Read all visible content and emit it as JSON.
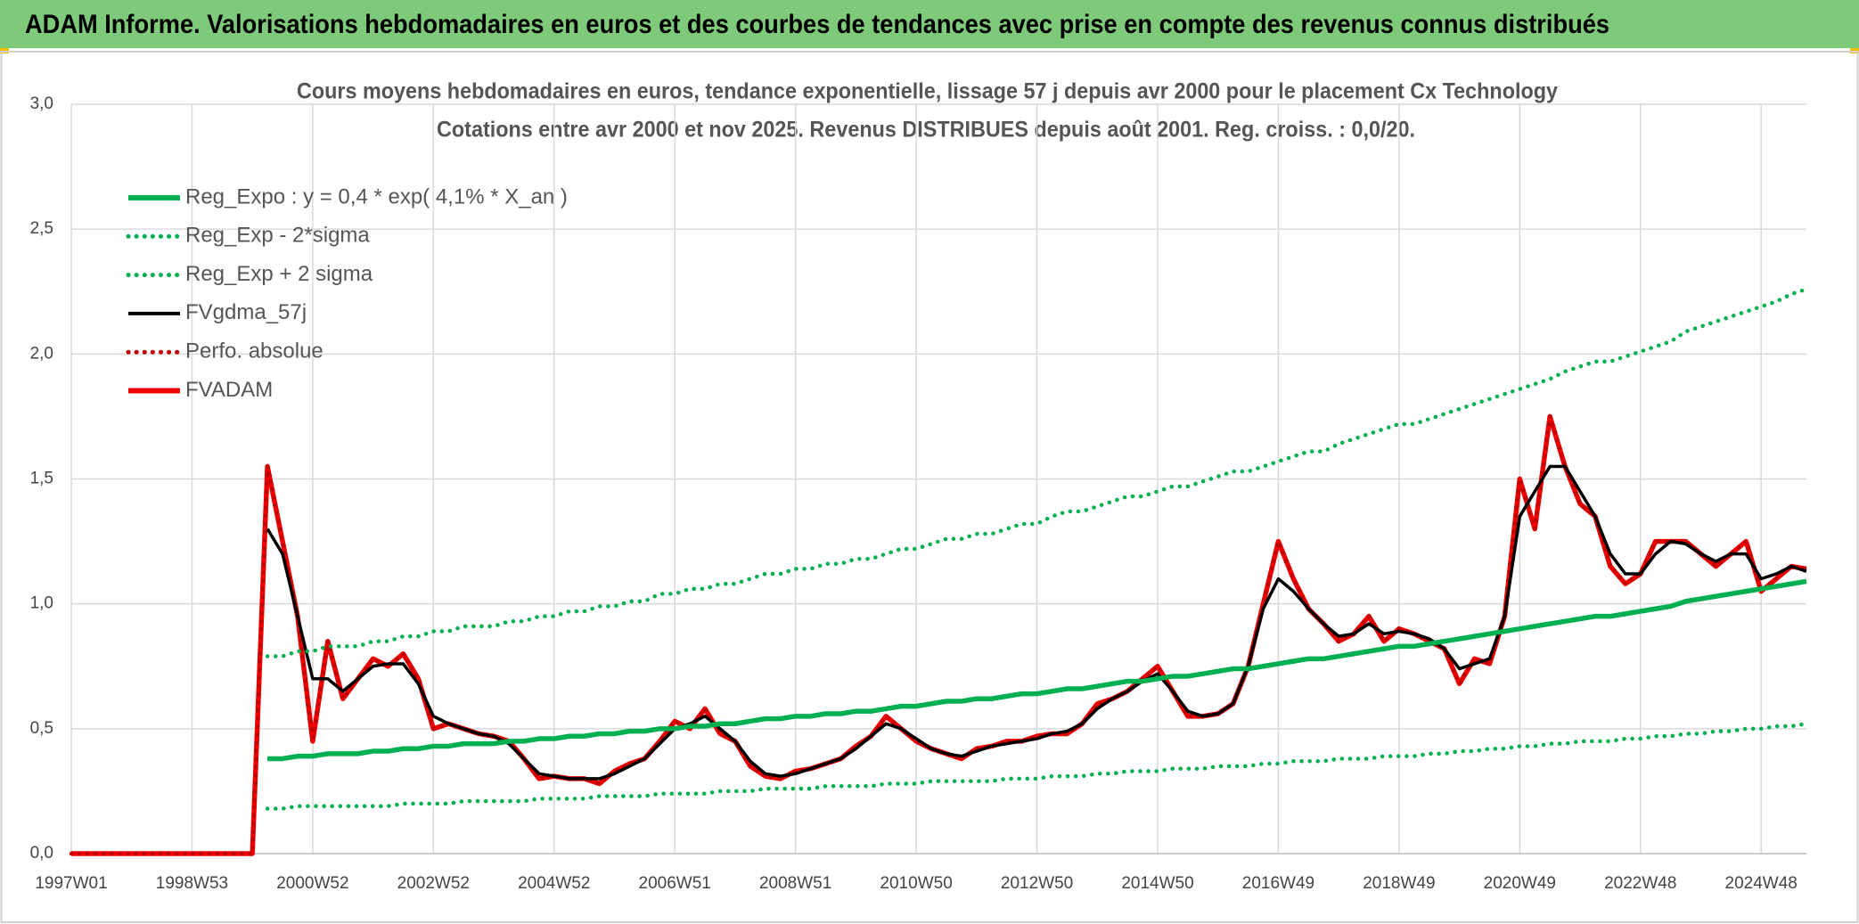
{
  "header": {
    "title": "ADAM Informe. Valorisations hebdomadaires en euros et des courbes de tendances avec prise en compte des revenus connus distribués"
  },
  "chart_data": {
    "type": "line",
    "title": "Cours moyens hebdomadaires en euros, tendance exponentielle, lissage 57 j depuis avr 2000 pour le placement Cx Technology",
    "subtitle": "Cotations entre avr 2000 et nov 2025. Revenus DISTRIBUES depuis août 2001. Reg. croiss. : 0,0/20.",
    "categories": [
      "1997W01",
      null,
      null,
      null,
      null,
      null,
      null,
      null,
      "1998W53",
      null,
      null,
      null,
      null,
      null,
      null,
      null,
      "2000W52",
      null,
      null,
      null,
      null,
      null,
      null,
      null,
      "2002W52",
      null,
      null,
      null,
      null,
      null,
      null,
      null,
      "2004W52",
      null,
      null,
      null,
      null,
      null,
      null,
      null,
      "2006W51",
      null,
      null,
      null,
      null,
      null,
      null,
      null,
      "2008W51",
      null,
      null,
      null,
      null,
      null,
      null,
      null,
      "2010W50",
      null,
      null,
      null,
      null,
      null,
      null,
      null,
      "2012W50",
      null,
      null,
      null,
      null,
      null,
      null,
      null,
      "2014W50",
      null,
      null,
      null,
      null,
      null,
      null,
      null,
      "2016W49",
      null,
      null,
      null,
      null,
      null,
      null,
      null,
      "2018W49",
      null,
      null,
      null,
      null,
      null,
      null,
      null,
      "2020W49",
      null,
      null,
      null,
      null,
      null,
      null,
      null,
      "2022W48",
      null,
      null,
      null,
      null,
      null,
      null,
      null,
      "2024W48",
      null,
      null,
      null
    ],
    "ylim": [
      0,
      3
    ],
    "yticks": [
      {
        "value": 0,
        "label": "0,0"
      },
      {
        "value": 0.5,
        "label": "0,5"
      },
      {
        "value": 1,
        "label": "1,0"
      },
      {
        "value": 1.5,
        "label": "1,5"
      },
      {
        "value": 2,
        "label": "2,0"
      },
      {
        "value": 2.5,
        "label": "2,5"
      },
      {
        "value": 3,
        "label": "3,0"
      }
    ],
    "grid": true,
    "legend": "top-left",
    "series": [
      {
        "name": "Reg_Expo : y = 0,4 * exp( 4,1% *  X_an )",
        "color": "#00b050",
        "style": "solid-thick",
        "values": [
          null,
          null,
          null,
          null,
          null,
          null,
          null,
          null,
          null,
          null,
          null,
          null,
          null,
          0.38,
          0.38,
          0.39,
          0.39,
          0.4,
          0.4,
          0.4,
          0.41,
          0.41,
          0.42,
          0.42,
          0.43,
          0.43,
          0.44,
          0.44,
          0.44,
          0.45,
          0.45,
          0.46,
          0.46,
          0.47,
          0.47,
          0.48,
          0.48,
          0.49,
          0.49,
          0.5,
          0.5,
          0.51,
          0.51,
          0.52,
          0.52,
          0.53,
          0.54,
          0.54,
          0.55,
          0.55,
          0.56,
          0.56,
          0.57,
          0.57,
          0.58,
          0.59,
          0.59,
          0.6,
          0.61,
          0.61,
          0.62,
          0.62,
          0.63,
          0.64,
          0.64,
          0.65,
          0.66,
          0.66,
          0.67,
          0.68,
          0.69,
          0.69,
          0.7,
          0.71,
          0.71,
          0.72,
          0.73,
          0.74,
          0.74,
          0.75,
          0.76,
          0.77,
          0.78,
          0.78,
          0.79,
          0.8,
          0.81,
          0.82,
          0.83,
          0.83,
          0.84,
          0.85,
          0.86,
          0.87,
          0.88,
          0.89,
          0.9,
          0.91,
          0.92,
          0.93,
          0.94,
          0.95,
          0.95,
          0.96,
          0.97,
          0.98,
          0.99,
          1.01,
          1.02,
          1.03,
          1.04,
          1.05,
          1.06,
          1.07,
          1.08,
          1.09
        ]
      },
      {
        "name": "Reg_Exp - 2*sigma",
        "color": "#00b050",
        "style": "dotted",
        "values": [
          null,
          null,
          null,
          null,
          null,
          null,
          null,
          null,
          null,
          null,
          null,
          null,
          null,
          0.18,
          0.18,
          0.19,
          0.19,
          0.19,
          0.19,
          0.19,
          0.19,
          0.19,
          0.2,
          0.2,
          0.2,
          0.2,
          0.21,
          0.21,
          0.21,
          0.21,
          0.21,
          0.22,
          0.22,
          0.22,
          0.22,
          0.23,
          0.23,
          0.23,
          0.23,
          0.24,
          0.24,
          0.24,
          0.24,
          0.25,
          0.25,
          0.25,
          0.26,
          0.26,
          0.26,
          0.26,
          0.27,
          0.27,
          0.27,
          0.27,
          0.28,
          0.28,
          0.28,
          0.29,
          0.29,
          0.29,
          0.29,
          0.29,
          0.3,
          0.3,
          0.3,
          0.31,
          0.31,
          0.31,
          0.32,
          0.32,
          0.33,
          0.33,
          0.33,
          0.34,
          0.34,
          0.34,
          0.35,
          0.35,
          0.35,
          0.36,
          0.36,
          0.37,
          0.37,
          0.37,
          0.38,
          0.38,
          0.38,
          0.39,
          0.39,
          0.39,
          0.4,
          0.4,
          0.41,
          0.41,
          0.42,
          0.42,
          0.43,
          0.43,
          0.44,
          0.44,
          0.45,
          0.45,
          0.45,
          0.46,
          0.46,
          0.47,
          0.47,
          0.48,
          0.48,
          0.49,
          0.49,
          0.5,
          0.5,
          0.51,
          0.51,
          0.52
        ]
      },
      {
        "name": "Reg_Exp + 2 sigma",
        "color": "#00b050",
        "style": "dotted",
        "values": [
          null,
          null,
          null,
          null,
          null,
          null,
          null,
          null,
          null,
          null,
          null,
          null,
          null,
          0.79,
          0.79,
          0.81,
          0.81,
          0.83,
          0.83,
          0.83,
          0.85,
          0.85,
          0.87,
          0.87,
          0.89,
          0.89,
          0.91,
          0.91,
          0.91,
          0.93,
          0.93,
          0.95,
          0.95,
          0.97,
          0.97,
          0.99,
          0.99,
          1.01,
          1.01,
          1.04,
          1.04,
          1.06,
          1.06,
          1.08,
          1.08,
          1.1,
          1.12,
          1.12,
          1.14,
          1.14,
          1.16,
          1.16,
          1.18,
          1.18,
          1.2,
          1.22,
          1.22,
          1.24,
          1.26,
          1.26,
          1.28,
          1.28,
          1.3,
          1.32,
          1.32,
          1.35,
          1.37,
          1.37,
          1.39,
          1.41,
          1.43,
          1.43,
          1.45,
          1.47,
          1.47,
          1.49,
          1.51,
          1.53,
          1.53,
          1.55,
          1.57,
          1.59,
          1.61,
          1.61,
          1.64,
          1.66,
          1.68,
          1.7,
          1.72,
          1.72,
          1.74,
          1.76,
          1.78,
          1.8,
          1.82,
          1.84,
          1.86,
          1.88,
          1.9,
          1.93,
          1.95,
          1.97,
          1.97,
          1.99,
          2.01,
          2.03,
          2.05,
          2.09,
          2.11,
          2.13,
          2.15,
          2.17,
          2.19,
          2.21,
          2.24,
          2.26
        ]
      },
      {
        "name": "FVgdma_57j",
        "color": "#000000",
        "style": "solid",
        "values": [
          null,
          null,
          null,
          null,
          null,
          null,
          null,
          null,
          null,
          null,
          null,
          null,
          null,
          1.3,
          1.2,
          0.95,
          0.7,
          0.7,
          0.65,
          0.7,
          0.75,
          0.76,
          0.76,
          0.68,
          0.55,
          0.52,
          0.5,
          0.48,
          0.47,
          0.44,
          0.38,
          0.32,
          0.31,
          0.3,
          0.3,
          0.3,
          0.32,
          0.35,
          0.38,
          0.44,
          0.5,
          0.52,
          0.55,
          0.5,
          0.45,
          0.37,
          0.32,
          0.31,
          0.32,
          0.34,
          0.36,
          0.38,
          0.42,
          0.47,
          0.52,
          0.5,
          0.46,
          0.42,
          0.4,
          0.39,
          0.41,
          0.43,
          0.44,
          0.45,
          0.46,
          0.48,
          0.49,
          0.52,
          0.58,
          0.62,
          0.65,
          0.69,
          0.72,
          0.65,
          0.57,
          0.55,
          0.56,
          0.6,
          0.75,
          0.98,
          1.1,
          1.05,
          0.98,
          0.92,
          0.87,
          0.88,
          0.92,
          0.88,
          0.89,
          0.88,
          0.86,
          0.82,
          0.74,
          0.76,
          0.78,
          0.95,
          1.35,
          1.45,
          1.55,
          1.55,
          1.45,
          1.35,
          1.2,
          1.12,
          1.12,
          1.2,
          1.25,
          1.24,
          1.2,
          1.17,
          1.2,
          1.2,
          1.1,
          1.12,
          1.15,
          1.13
        ]
      },
      {
        "name": "Perfo. absolue",
        "color": "#c00000",
        "style": "dotted",
        "values": [
          0,
          0,
          0,
          0,
          0,
          0,
          0,
          0,
          0,
          0,
          0,
          0,
          0,
          1.55,
          1.25,
          0.95,
          0.45,
          0.85,
          0.62,
          0.7,
          0.78,
          0.75,
          0.8,
          0.7,
          0.5,
          0.52,
          0.5,
          0.48,
          0.47,
          0.45,
          0.38,
          0.3,
          0.31,
          0.3,
          0.3,
          0.28,
          0.33,
          0.36,
          0.38,
          0.45,
          0.53,
          0.5,
          0.58,
          0.48,
          0.45,
          0.35,
          0.31,
          0.3,
          0.33,
          0.34,
          0.36,
          0.38,
          0.43,
          0.47,
          0.55,
          0.5,
          0.45,
          0.42,
          0.4,
          0.38,
          0.42,
          0.43,
          0.45,
          0.45,
          0.47,
          0.48,
          0.48,
          0.52,
          0.6,
          0.62,
          0.65,
          0.7,
          0.75,
          0.65,
          0.55,
          0.55,
          0.56,
          0.6,
          0.75,
          1.0,
          1.25,
          1.1,
          0.98,
          0.92,
          0.85,
          0.88,
          0.95,
          0.85,
          0.9,
          0.88,
          0.85,
          0.82,
          0.68,
          0.78,
          0.76,
          0.95,
          1.5,
          1.3,
          1.75,
          1.55,
          1.4,
          1.35,
          1.15,
          1.08,
          1.12,
          1.25,
          1.25,
          1.25,
          1.2,
          1.15,
          1.2,
          1.25,
          1.05,
          1.1,
          1.15,
          1.14
        ]
      },
      {
        "name": "FVADAM",
        "color": "#ee0000",
        "style": "solid-thick",
        "values": [
          0,
          0,
          0,
          0,
          0,
          0,
          0,
          0,
          0,
          0,
          0,
          0,
          0,
          1.55,
          1.25,
          0.95,
          0.45,
          0.85,
          0.62,
          0.7,
          0.78,
          0.75,
          0.8,
          0.7,
          0.5,
          0.52,
          0.5,
          0.48,
          0.47,
          0.45,
          0.38,
          0.3,
          0.31,
          0.3,
          0.3,
          0.28,
          0.33,
          0.36,
          0.38,
          0.45,
          0.53,
          0.5,
          0.58,
          0.48,
          0.45,
          0.35,
          0.31,
          0.3,
          0.33,
          0.34,
          0.36,
          0.38,
          0.43,
          0.47,
          0.55,
          0.5,
          0.45,
          0.42,
          0.4,
          0.38,
          0.42,
          0.43,
          0.45,
          0.45,
          0.47,
          0.48,
          0.48,
          0.52,
          0.6,
          0.62,
          0.65,
          0.7,
          0.75,
          0.65,
          0.55,
          0.55,
          0.56,
          0.6,
          0.75,
          1.0,
          1.25,
          1.1,
          0.98,
          0.92,
          0.85,
          0.88,
          0.95,
          0.85,
          0.9,
          0.88,
          0.85,
          0.82,
          0.68,
          0.78,
          0.76,
          0.95,
          1.5,
          1.3,
          1.75,
          1.55,
          1.4,
          1.35,
          1.15,
          1.08,
          1.12,
          1.25,
          1.25,
          1.25,
          1.2,
          1.15,
          1.2,
          1.25,
          1.05,
          1.1,
          1.15,
          1.14
        ]
      }
    ]
  }
}
